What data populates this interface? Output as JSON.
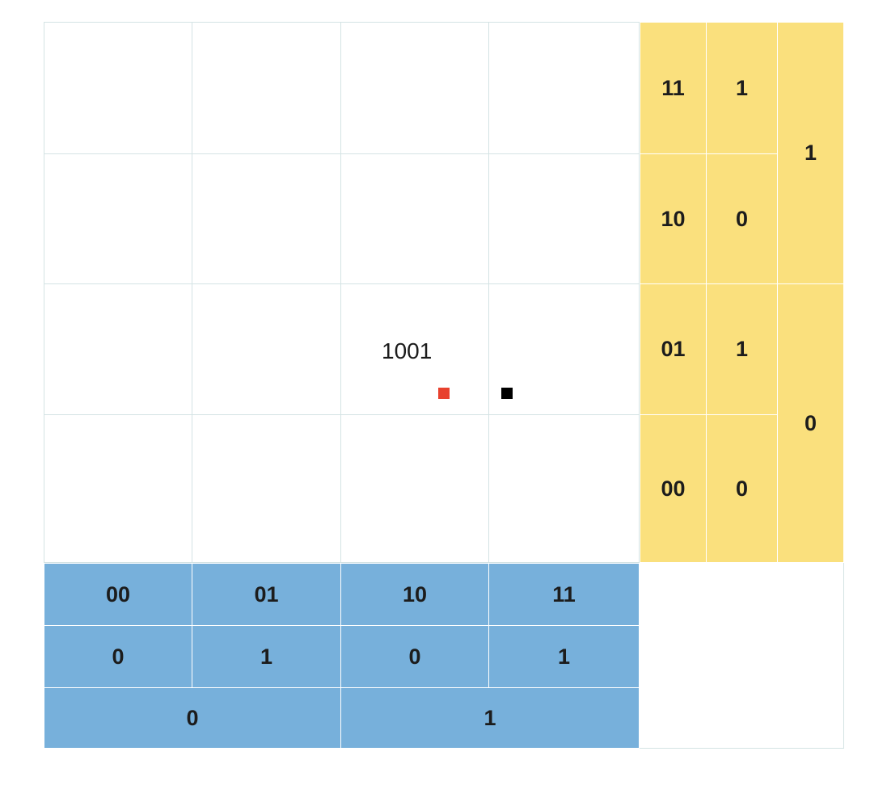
{
  "diagram": {
    "cell_label": "1001",
    "columns": {
      "level2": [
        "00",
        "01",
        "10",
        "11"
      ],
      "level1": [
        "0",
        "1",
        "0",
        "1"
      ],
      "level0": [
        "0",
        "1"
      ]
    },
    "rows": {
      "level2": [
        "11",
        "10",
        "01",
        "00"
      ],
      "level1": [
        "1",
        "0",
        "1",
        "0"
      ],
      "level0": [
        "1",
        "0"
      ]
    },
    "colors": {
      "column_header": "#77b0db",
      "row_header": "#fae07d",
      "grid_line": "#d4e3e4",
      "red_marker": "#e8412e",
      "black_marker": "#000000"
    }
  }
}
